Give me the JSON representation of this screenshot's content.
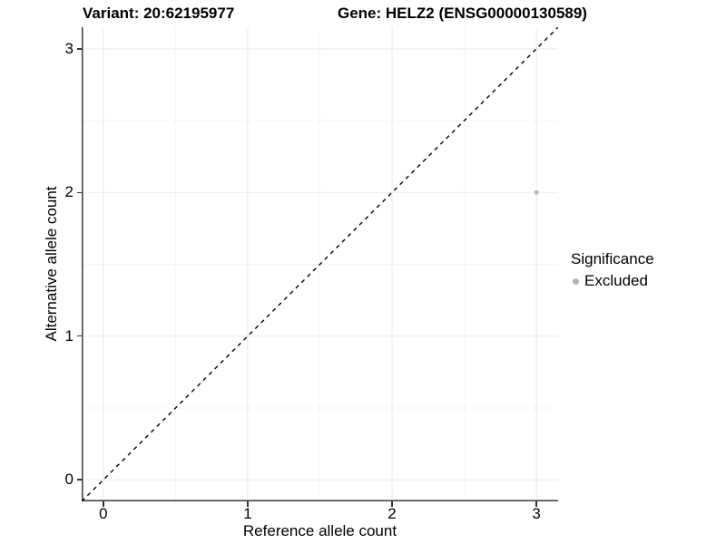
{
  "chart_data": {
    "type": "scatter",
    "title_left": "Variant: 20:62195977",
    "title_right": "Gene: HELZ2 (ENSG00000130589)",
    "xlabel": "Reference allele count",
    "ylabel": "Alternative allele count",
    "xlim": [
      -0.15,
      3.15
    ],
    "ylim": [
      -0.15,
      3.15
    ],
    "x_ticks": [
      0,
      1,
      2,
      3
    ],
    "y_ticks": [
      0,
      1,
      2,
      3
    ],
    "x_tick_labels": [
      "0",
      "1",
      "2",
      "3"
    ],
    "y_tick_labels": [
      "0",
      "1",
      "2",
      "3"
    ],
    "x_minor_ticks": [
      0.5,
      1.5,
      2.5
    ],
    "y_minor_ticks": [
      0.5,
      1.5,
      2.5
    ],
    "grid": "major+minor",
    "legend_position": "right",
    "legend": {
      "title": "Significance",
      "items": [
        {
          "label": "Excluded",
          "color": "#b3b3b3"
        }
      ]
    },
    "series": [
      {
        "name": "Excluded",
        "color": "#b3b3b3",
        "marker": "circle",
        "points": [
          [
            3,
            2
          ]
        ]
      }
    ],
    "reference_line": {
      "slope": 1,
      "intercept": 0,
      "style": "dashed",
      "color": "#000000"
    },
    "colors": {
      "grid_major": "#ebebeb",
      "grid_minor": "#f5f5f5",
      "axis_line": "#474747",
      "tick_mark": "#333333",
      "text": "#000000",
      "background": "#ffffff"
    }
  }
}
